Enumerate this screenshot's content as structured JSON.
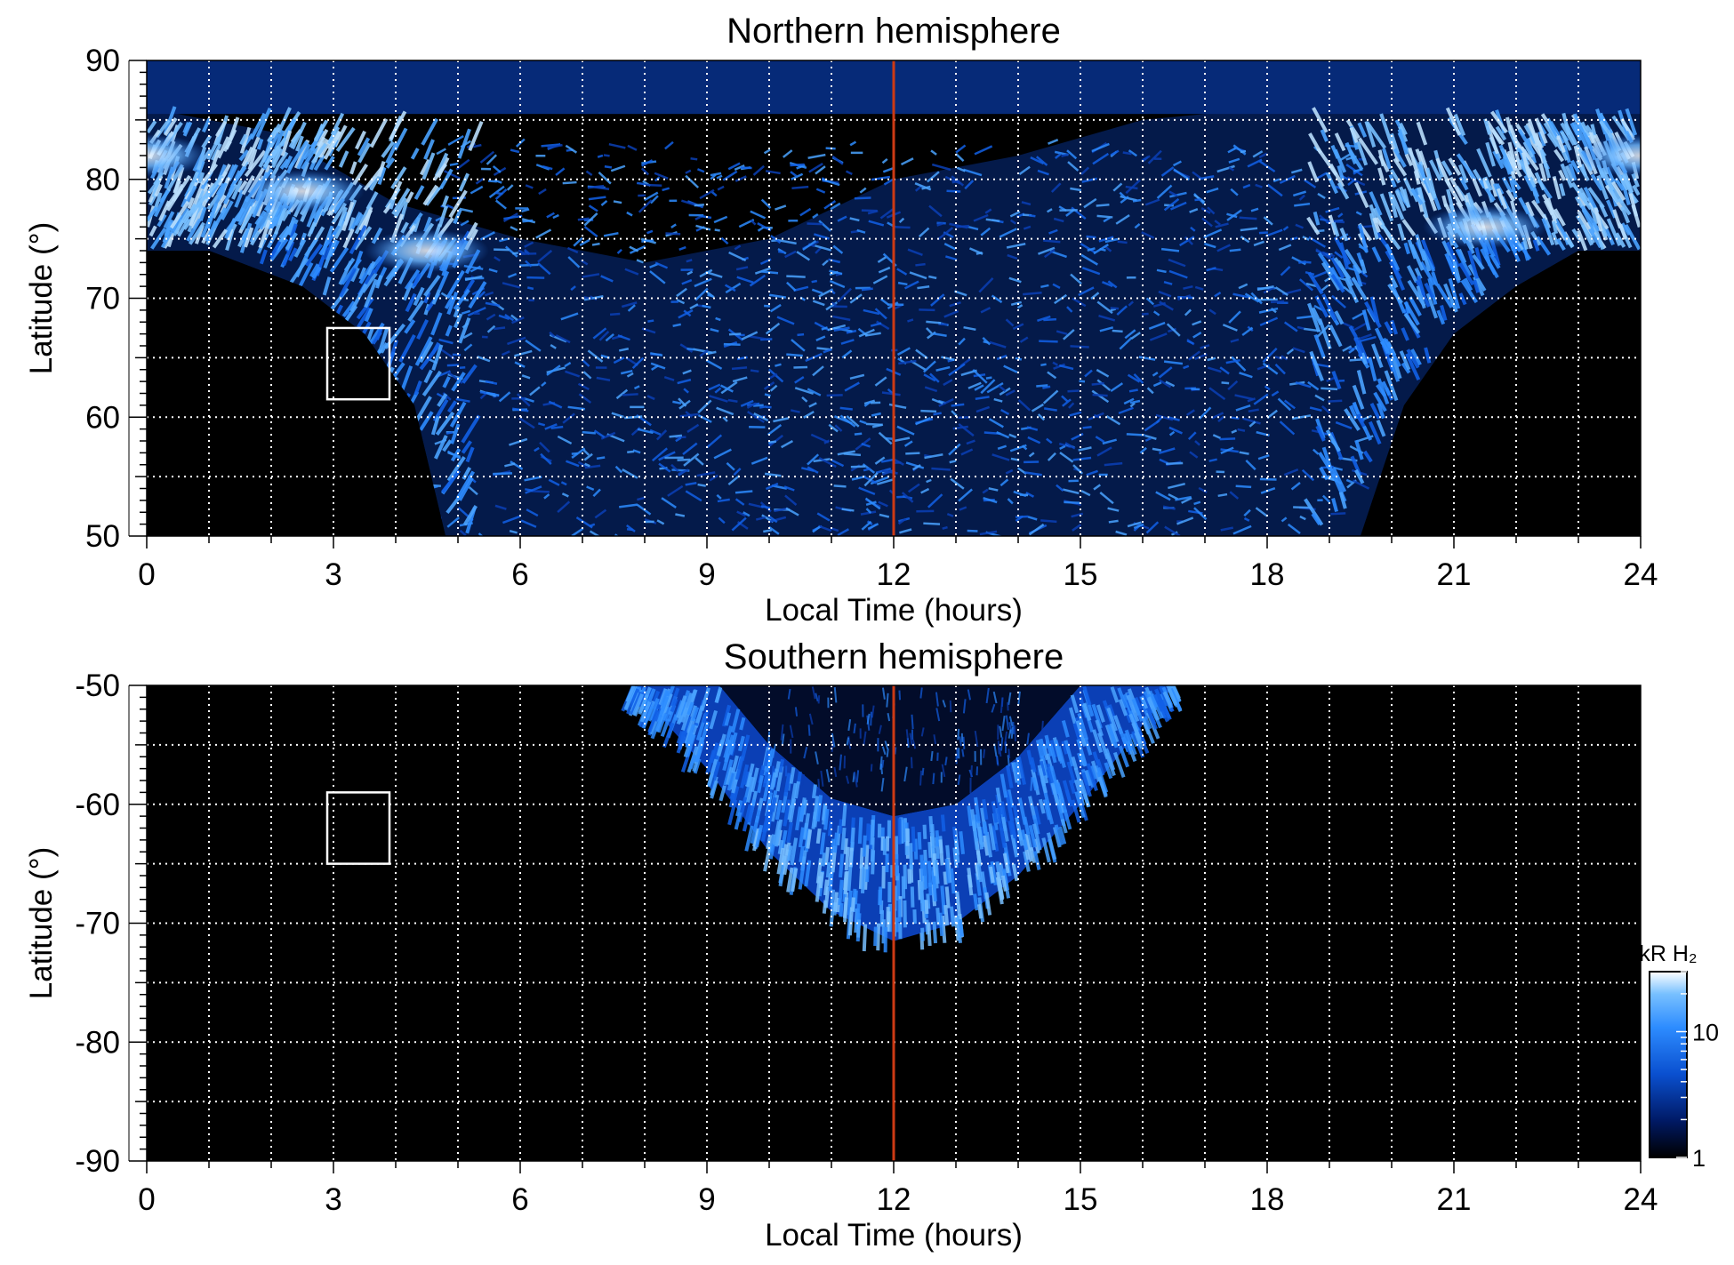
{
  "chart_data": [
    {
      "type": "heatmap",
      "title": "Northern hemisphere",
      "xlabel": "Local Time (hours)",
      "ylabel": "Latitude (°)",
      "xlim": [
        0,
        24
      ],
      "ylim": [
        50,
        90
      ],
      "x_ticks": [
        "0",
        "3",
        "6",
        "9",
        "12",
        "15",
        "18",
        "21",
        "24"
      ],
      "y_ticks": [
        "50",
        "60",
        "70",
        "80",
        "90"
      ],
      "grid": true,
      "colormap": [
        "#000000",
        "#001a66",
        "#0a50d0",
        "#2d8cff",
        "#78c0ff",
        "#ffffff"
      ],
      "color_scale": "log",
      "noon_line": {
        "x": 12,
        "color": "#cc3a14"
      },
      "highlight_box": {
        "x": [
          2.9,
          3.9
        ],
        "y": [
          61.5,
          67.5
        ]
      },
      "emission": {
        "auroral_oval_polar_edge_lat": [
          [
            0,
            86
          ],
          [
            2,
            84
          ],
          [
            4,
            78
          ],
          [
            6,
            75
          ],
          [
            8,
            73
          ],
          [
            10,
            75
          ],
          [
            12,
            80
          ],
          [
            14,
            82
          ],
          [
            16,
            85
          ],
          [
            18,
            86
          ],
          [
            20,
            86
          ],
          [
            22,
            86
          ],
          [
            24,
            86
          ]
        ],
        "auroral_oval_equatorward_edge_lat": [
          [
            0,
            74
          ],
          [
            1,
            74
          ],
          [
            2.5,
            71
          ],
          [
            3.5,
            67
          ],
          [
            4.3,
            61
          ],
          [
            4.8,
            50
          ],
          [
            19.5,
            50
          ],
          [
            20.2,
            61
          ],
          [
            21,
            67
          ],
          [
            22,
            71
          ],
          [
            23,
            74
          ],
          [
            24,
            74
          ]
        ],
        "peak_brightness_region": [
          [
            0,
            82
          ],
          [
            2.5,
            79
          ],
          [
            4.5,
            74
          ],
          [
            21.5,
            76
          ],
          [
            24,
            82
          ]
        ]
      }
    },
    {
      "type": "heatmap",
      "title": "Southern hemisphere",
      "xlabel": "Local Time (hours)",
      "ylabel": "Latitude (°)",
      "xlim": [
        0,
        24
      ],
      "ylim": [
        -90,
        -50
      ],
      "x_ticks": [
        "0",
        "3",
        "6",
        "9",
        "12",
        "15",
        "18",
        "21",
        "24"
      ],
      "y_ticks": [
        "-90",
        "-80",
        "-70",
        "-60",
        "-50"
      ],
      "grid": true,
      "colormap": [
        "#000000",
        "#001a66",
        "#0a50d0",
        "#2d8cff",
        "#78c0ff",
        "#ffffff"
      ],
      "color_scale": "log",
      "noon_line": {
        "x": 12,
        "color": "#cc3a14"
      },
      "highlight_box": {
        "x": [
          2.9,
          3.9
        ],
        "y": [
          -65,
          -59
        ]
      },
      "emission": {
        "outer_edge_lat": [
          [
            7.8,
            -50
          ],
          [
            9,
            -57
          ],
          [
            10,
            -64
          ],
          [
            11,
            -69
          ],
          [
            12,
            -71.5
          ],
          [
            13,
            -70
          ],
          [
            14,
            -66
          ],
          [
            15,
            -60
          ],
          [
            16.5,
            -50
          ]
        ],
        "inner_edge_lat": [
          [
            9.2,
            -50
          ],
          [
            10,
            -55
          ],
          [
            11,
            -59.5
          ],
          [
            12,
            -61
          ],
          [
            13,
            -60
          ],
          [
            14,
            -56
          ],
          [
            15,
            -50
          ]
        ]
      }
    }
  ],
  "colorbar": {
    "title": "kR H₂",
    "ticks": [
      "1",
      "10"
    ],
    "scale": "log",
    "placement": "bottom-right"
  }
}
